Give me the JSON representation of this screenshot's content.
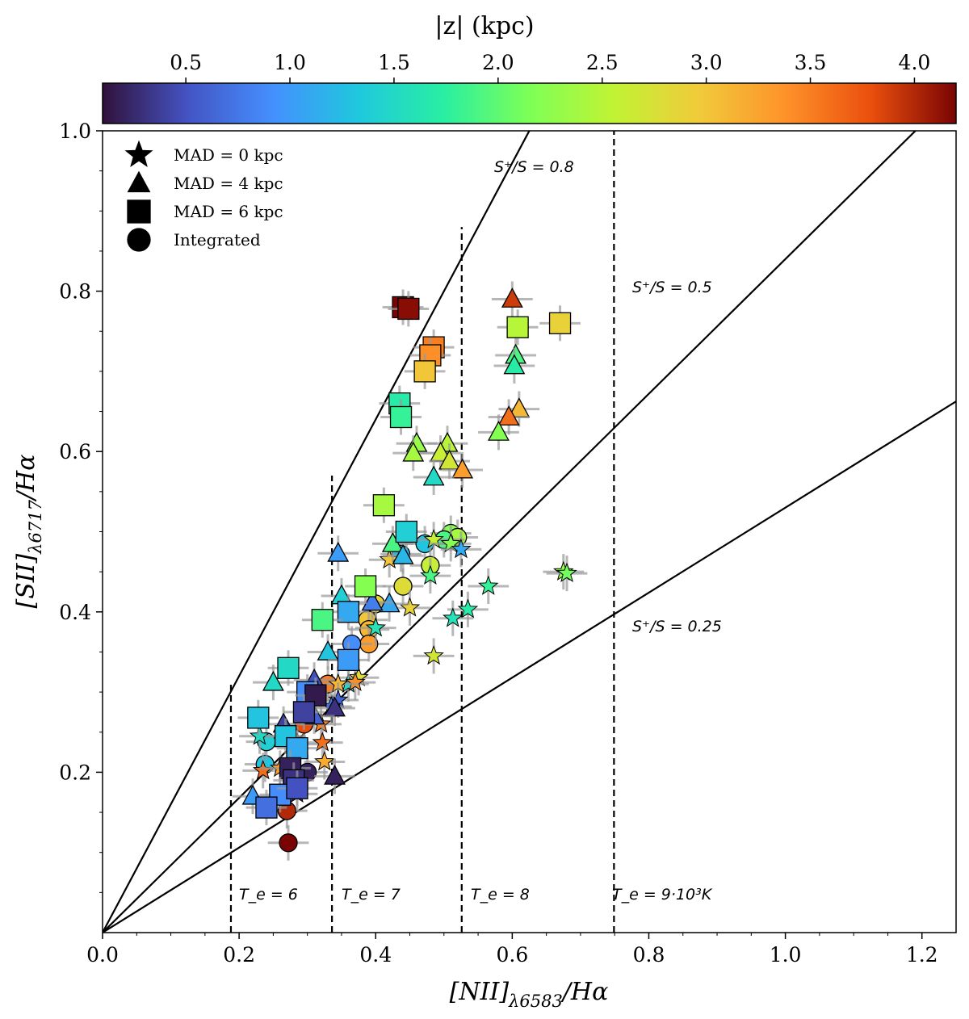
{
  "chart_data": {
    "type": "scatter",
    "xlabel": "[NII]_{λ6583}/Hα",
    "ylabel": "[SII]_{λ6717}/Hα",
    "xlim": [
      0.0,
      1.25
    ],
    "ylim": [
      0.0,
      1.0
    ],
    "x_ticks": [
      "0.0",
      "0.2",
      "0.4",
      "0.6",
      "0.8",
      "1.0",
      "1.2"
    ],
    "y_ticks": [
      "0.2",
      "0.4",
      "0.6",
      "0.8",
      "1.0"
    ],
    "colorbar": {
      "label": "|z| (kpc)",
      "range": [
        0.1,
        4.2
      ],
      "ticks": [
        "0.5",
        "1.0",
        "1.5",
        "2.0",
        "2.5",
        "3.0",
        "3.5",
        "4.0"
      ],
      "colormap": "turbo"
    },
    "legend": [
      {
        "marker": "star",
        "label": "MAD = 0 kpc"
      },
      {
        "marker": "triangle",
        "label": "MAD = 4 kpc"
      },
      {
        "marker": "square",
        "label": "MAD = 6 kpc"
      },
      {
        "marker": "circle",
        "label": "Integrated"
      }
    ],
    "reference_lines": [
      {
        "label": "S⁺/S = 0.8",
        "slope": 1.6
      },
      {
        "label": "S⁺/S = 0.5",
        "slope": 0.84
      },
      {
        "label": "S⁺/S = 0.25",
        "slope": 0.53
      }
    ],
    "temperature_lines": [
      {
        "label": "T_e = 6",
        "x": 0.188,
        "ymax": 0.31
      },
      {
        "label": "T_e = 7",
        "x": 0.336,
        "ymax": 0.57
      },
      {
        "label": "T_e = 8",
        "x": 0.526,
        "ymax": 0.88
      },
      {
        "label": "T_e = 9·10³K",
        "x": 0.749,
        "ymax": 1.0
      }
    ],
    "series": [
      {
        "name": "MAD = 0 kpc",
        "marker": "star",
        "points": [
          {
            "x": 0.485,
            "y": 0.49,
            "z": 2.6
          },
          {
            "x": 0.51,
            "y": 0.485,
            "z": 2.2
          },
          {
            "x": 0.525,
            "y": 0.478,
            "z": 1.1
          },
          {
            "x": 0.48,
            "y": 0.445,
            "z": 1.9
          },
          {
            "x": 0.45,
            "y": 0.405,
            "z": 2.9
          },
          {
            "x": 0.565,
            "y": 0.432,
            "z": 1.8
          },
          {
            "x": 0.675,
            "y": 0.45,
            "z": 2.3
          },
          {
            "x": 0.68,
            "y": 0.448,
            "z": 2.1
          },
          {
            "x": 0.535,
            "y": 0.403,
            "z": 1.7
          },
          {
            "x": 0.513,
            "y": 0.392,
            "z": 1.6
          },
          {
            "x": 0.485,
            "y": 0.345,
            "z": 2.7
          },
          {
            "x": 0.375,
            "y": 0.318,
            "z": 2.8
          },
          {
            "x": 0.36,
            "y": 0.31,
            "z": 1.5
          },
          {
            "x": 0.37,
            "y": 0.312,
            "z": 3.4
          },
          {
            "x": 0.345,
            "y": 0.31,
            "z": 3.1
          },
          {
            "x": 0.345,
            "y": 0.29,
            "z": 0.6
          },
          {
            "x": 0.335,
            "y": 0.282,
            "z": 0.7
          },
          {
            "x": 0.32,
            "y": 0.26,
            "z": 3.5
          },
          {
            "x": 0.322,
            "y": 0.237,
            "z": 3.6
          },
          {
            "x": 0.325,
            "y": 0.213,
            "z": 3.2
          },
          {
            "x": 0.235,
            "y": 0.202,
            "z": 3.6
          },
          {
            "x": 0.26,
            "y": 0.205,
            "z": 3.3
          },
          {
            "x": 0.285,
            "y": 0.173,
            "z": 0.3
          },
          {
            "x": 0.23,
            "y": 0.245,
            "z": 1.5
          },
          {
            "x": 0.4,
            "y": 0.38,
            "z": 1.6
          },
          {
            "x": 0.42,
            "y": 0.465,
            "z": 3.0
          }
        ]
      },
      {
        "name": "MAD = 4 kpc",
        "marker": "triangle",
        "points": [
          {
            "x": 0.6,
            "y": 0.79,
            "z": 3.9
          },
          {
            "x": 0.605,
            "y": 0.72,
            "z": 1.9
          },
          {
            "x": 0.603,
            "y": 0.707,
            "z": 1.7
          },
          {
            "x": 0.61,
            "y": 0.653,
            "z": 3.1
          },
          {
            "x": 0.595,
            "y": 0.643,
            "z": 3.6
          },
          {
            "x": 0.58,
            "y": 0.624,
            "z": 2.2
          },
          {
            "x": 0.46,
            "y": 0.61,
            "z": 2.3
          },
          {
            "x": 0.505,
            "y": 0.61,
            "z": 2.5
          },
          {
            "x": 0.455,
            "y": 0.598,
            "z": 2.4
          },
          {
            "x": 0.495,
            "y": 0.598,
            "z": 2.6
          },
          {
            "x": 0.508,
            "y": 0.588,
            "z": 2.7
          },
          {
            "x": 0.527,
            "y": 0.577,
            "z": 3.3
          },
          {
            "x": 0.485,
            "y": 0.568,
            "z": 1.5
          },
          {
            "x": 0.425,
            "y": 0.485,
            "z": 1.9
          },
          {
            "x": 0.44,
            "y": 0.47,
            "z": 1.2
          },
          {
            "x": 0.345,
            "y": 0.473,
            "z": 1.0
          },
          {
            "x": 0.35,
            "y": 0.42,
            "z": 1.4
          },
          {
            "x": 0.42,
            "y": 0.41,
            "z": 1.1
          },
          {
            "x": 0.395,
            "y": 0.412,
            "z": 0.8
          },
          {
            "x": 0.33,
            "y": 0.35,
            "z": 1.3
          },
          {
            "x": 0.25,
            "y": 0.312,
            "z": 1.5
          },
          {
            "x": 0.31,
            "y": 0.315,
            "z": 0.5
          },
          {
            "x": 0.265,
            "y": 0.26,
            "z": 0.4
          },
          {
            "x": 0.34,
            "y": 0.195,
            "z": 0.2
          },
          {
            "x": 0.34,
            "y": 0.28,
            "z": 0.3
          },
          {
            "x": 0.31,
            "y": 0.27,
            "z": 0.6
          },
          {
            "x": 0.285,
            "y": 0.235,
            "z": 0.3
          },
          {
            "x": 0.22,
            "y": 0.17,
            "z": 1.0
          }
        ]
      },
      {
        "name": "MAD = 6 kpc",
        "marker": "square",
        "points": [
          {
            "x": 0.44,
            "y": 0.78,
            "z": 4.2
          },
          {
            "x": 0.448,
            "y": 0.778,
            "z": 4.15
          },
          {
            "x": 0.485,
            "y": 0.73,
            "z": 3.5
          },
          {
            "x": 0.48,
            "y": 0.72,
            "z": 3.4
          },
          {
            "x": 0.472,
            "y": 0.7,
            "z": 3.0
          },
          {
            "x": 0.608,
            "y": 0.755,
            "z": 2.5
          },
          {
            "x": 0.67,
            "y": 0.76,
            "z": 2.9
          },
          {
            "x": 0.435,
            "y": 0.66,
            "z": 1.7
          },
          {
            "x": 0.437,
            "y": 0.643,
            "z": 1.8
          },
          {
            "x": 0.412,
            "y": 0.533,
            "z": 2.4
          },
          {
            "x": 0.445,
            "y": 0.5,
            "z": 1.4
          },
          {
            "x": 0.385,
            "y": 0.432,
            "z": 2.2
          },
          {
            "x": 0.36,
            "y": 0.4,
            "z": 1.1
          },
          {
            "x": 0.322,
            "y": 0.39,
            "z": 1.9
          },
          {
            "x": 0.36,
            "y": 0.34,
            "z": 1.0
          },
          {
            "x": 0.272,
            "y": 0.33,
            "z": 1.5
          },
          {
            "x": 0.3,
            "y": 0.3,
            "z": 0.9
          },
          {
            "x": 0.312,
            "y": 0.296,
            "z": 0.15
          },
          {
            "x": 0.295,
            "y": 0.275,
            "z": 0.4
          },
          {
            "x": 0.228,
            "y": 0.268,
            "z": 1.3
          },
          {
            "x": 0.268,
            "y": 0.245,
            "z": 1.3
          },
          {
            "x": 0.285,
            "y": 0.23,
            "z": 1.1
          },
          {
            "x": 0.275,
            "y": 0.205,
            "z": 0.2
          },
          {
            "x": 0.28,
            "y": 0.19,
            "z": 0.3
          },
          {
            "x": 0.26,
            "y": 0.172,
            "z": 0.9
          },
          {
            "x": 0.24,
            "y": 0.156,
            "z": 0.7
          },
          {
            "x": 0.285,
            "y": 0.18,
            "z": 0.5
          }
        ]
      },
      {
        "name": "Integrated",
        "marker": "circle",
        "points": [
          {
            "x": 0.51,
            "y": 0.498,
            "z": 2.2
          },
          {
            "x": 0.52,
            "y": 0.493,
            "z": 2.4
          },
          {
            "x": 0.5,
            "y": 0.49,
            "z": 1.9
          },
          {
            "x": 0.472,
            "y": 0.485,
            "z": 1.3
          },
          {
            "x": 0.48,
            "y": 0.458,
            "z": 2.6
          },
          {
            "x": 0.44,
            "y": 0.432,
            "z": 2.8
          },
          {
            "x": 0.437,
            "y": 0.472,
            "z": 1.2
          },
          {
            "x": 0.4,
            "y": 0.41,
            "z": 2.9
          },
          {
            "x": 0.388,
            "y": 0.39,
            "z": 3.0
          },
          {
            "x": 0.39,
            "y": 0.378,
            "z": 3.1
          },
          {
            "x": 0.39,
            "y": 0.36,
            "z": 3.3
          },
          {
            "x": 0.365,
            "y": 0.36,
            "z": 0.9
          },
          {
            "x": 0.33,
            "y": 0.31,
            "z": 3.5
          },
          {
            "x": 0.238,
            "y": 0.21,
            "z": 1.3
          },
          {
            "x": 0.24,
            "y": 0.238,
            "z": 1.4
          },
          {
            "x": 0.295,
            "y": 0.26,
            "z": 3.8
          },
          {
            "x": 0.3,
            "y": 0.2,
            "z": 0.2
          },
          {
            "x": 0.27,
            "y": 0.152,
            "z": 4.0
          },
          {
            "x": 0.272,
            "y": 0.112,
            "z": 4.2
          }
        ]
      }
    ]
  }
}
